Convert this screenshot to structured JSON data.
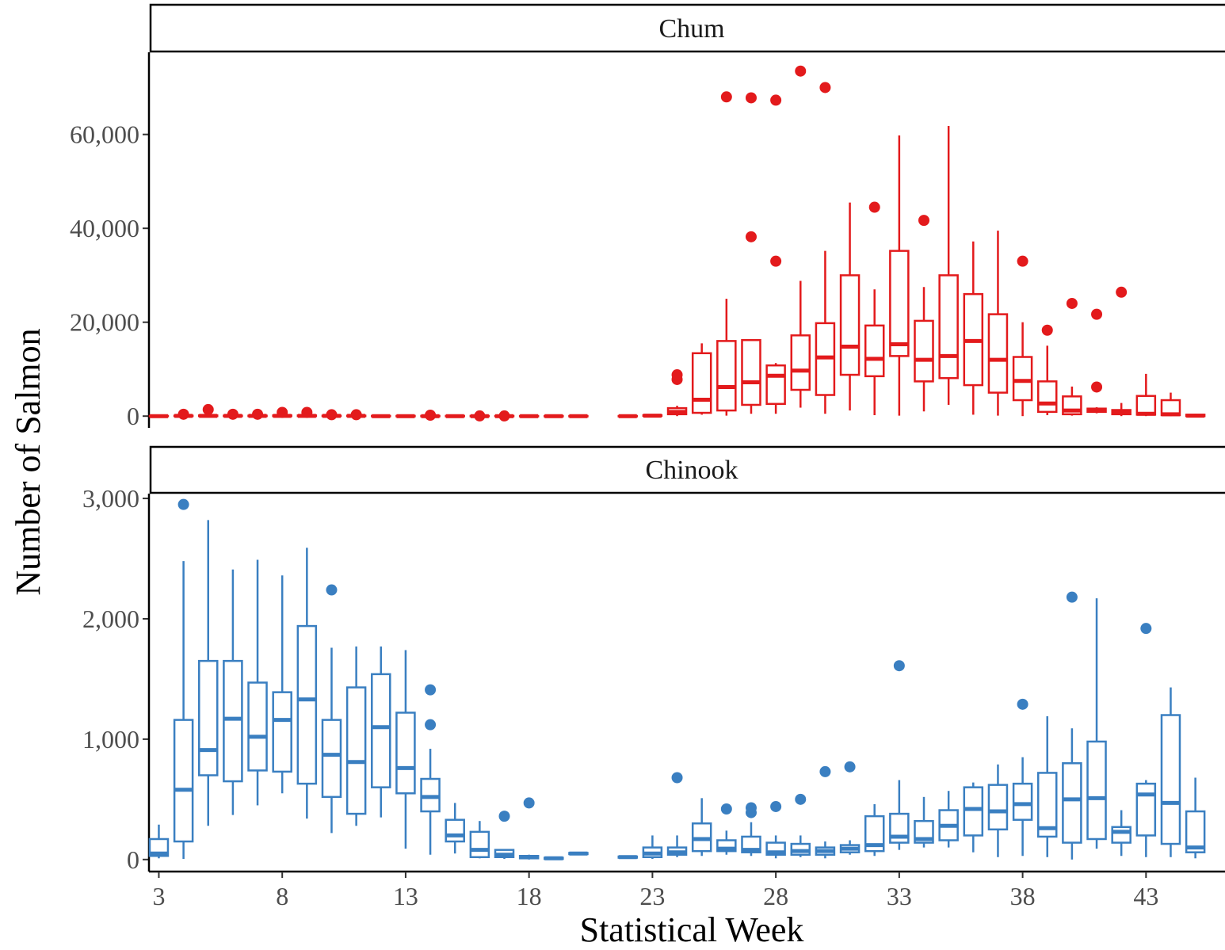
{
  "chart_data": {
    "type": "boxplot",
    "xlabel": "Statistical Week",
    "ylabel": "Number of Salmon",
    "x_ticks": [
      3,
      8,
      13,
      18,
      23,
      28,
      33,
      38,
      43
    ],
    "x_tick_labels": [
      "3",
      "8",
      "13",
      "18",
      "23",
      "28",
      "33",
      "38",
      "43"
    ],
    "xlim": [
      2.6,
      46.2
    ],
    "panels": [
      {
        "name": "Chum",
        "color": "#e31a1c",
        "ylim": [
          -2500,
          77500
        ],
        "y_ticks": [
          0,
          20000,
          40000,
          60000
        ],
        "y_tick_labels": [
          "0",
          "20,000",
          "40,000",
          "60,000"
        ],
        "boxes": [
          {
            "week": 3,
            "min": 0,
            "q1": 0,
            "median": 0,
            "q3": 50,
            "max": 80
          },
          {
            "week": 4,
            "min": 0,
            "q1": 0,
            "median": 50,
            "q3": 100,
            "max": 150,
            "outliers": [
              400
            ]
          },
          {
            "week": 5,
            "min": 0,
            "q1": 0,
            "median": 50,
            "q3": 150,
            "max": 200,
            "outliers": [
              1400
            ]
          },
          {
            "week": 6,
            "min": 0,
            "q1": 0,
            "median": 50,
            "q3": 100,
            "max": 150,
            "outliers": [
              400
            ]
          },
          {
            "week": 7,
            "min": 0,
            "q1": 0,
            "median": 50,
            "q3": 100,
            "max": 150,
            "outliers": [
              400
            ]
          },
          {
            "week": 8,
            "min": 0,
            "q1": 0,
            "median": 50,
            "q3": 150,
            "max": 200,
            "outliers": [
              800
            ]
          },
          {
            "week": 9,
            "min": 0,
            "q1": 0,
            "median": 50,
            "q3": 150,
            "max": 200,
            "outliers": [
              800
            ]
          },
          {
            "week": 10,
            "min": 0,
            "q1": 0,
            "median": 50,
            "q3": 100,
            "max": 150,
            "outliers": [
              300
            ]
          },
          {
            "week": 11,
            "min": 0,
            "q1": 0,
            "median": 50,
            "q3": 100,
            "max": 150,
            "outliers": [
              300
            ]
          },
          {
            "week": 12,
            "min": 0,
            "q1": 0,
            "median": 0,
            "q3": 50,
            "max": 80
          },
          {
            "week": 13,
            "min": 0,
            "q1": 0,
            "median": 0,
            "q3": 50,
            "max": 80
          },
          {
            "week": 14,
            "min": 0,
            "q1": 0,
            "median": 0,
            "q3": 50,
            "max": 80,
            "outliers": [
              200
            ]
          },
          {
            "week": 15,
            "min": 0,
            "q1": 0,
            "median": 0,
            "q3": 50,
            "max": 80
          },
          {
            "week": 16,
            "min": 0,
            "q1": 0,
            "median": 0,
            "q3": 50,
            "max": 80,
            "outliers": [
              50
            ]
          },
          {
            "week": 17,
            "min": 0,
            "q1": 0,
            "median": 0,
            "q3": 50,
            "max": 80,
            "outliers": [
              50
            ]
          },
          {
            "week": 18,
            "min": 0,
            "q1": 0,
            "median": 0,
            "q3": 30,
            "max": 50
          },
          {
            "week": 19,
            "min": 0,
            "q1": 0,
            "median": 0,
            "q3": 30,
            "max": 50
          },
          {
            "week": 20,
            "min": 0,
            "q1": 0,
            "median": 0,
            "q3": 30,
            "max": 50
          },
          {
            "week": 22,
            "min": 0,
            "q1": 0,
            "median": 0,
            "q3": 30,
            "max": 50
          },
          {
            "week": 23,
            "min": 0,
            "q1": 50,
            "median": 100,
            "q3": 200,
            "max": 300
          },
          {
            "week": 24,
            "min": 0,
            "q1": 400,
            "median": 900,
            "q3": 1700,
            "max": 2200,
            "outliers": [
              7800,
              8800
            ]
          },
          {
            "week": 25,
            "min": 300,
            "q1": 700,
            "median": 3500,
            "q3": 13400,
            "max": 15500
          },
          {
            "week": 26,
            "min": 100,
            "q1": 1200,
            "median": 6200,
            "q3": 16000,
            "max": 25000,
            "outliers": [
              68000
            ]
          },
          {
            "week": 27,
            "min": 500,
            "q1": 2400,
            "median": 7200,
            "q3": 16200,
            "max": 16200,
            "outliers": [
              38200,
              67800
            ]
          },
          {
            "week": 28,
            "min": 500,
            "q1": 2600,
            "median": 8600,
            "q3": 10800,
            "max": 11300,
            "outliers": [
              33000,
              67300
            ]
          },
          {
            "week": 29,
            "min": 1800,
            "q1": 5600,
            "median": 9700,
            "q3": 17200,
            "max": 28800,
            "outliers": [
              73500
            ]
          },
          {
            "week": 30,
            "min": 500,
            "q1": 4500,
            "median": 12500,
            "q3": 19800,
            "max": 35200,
            "outliers": [
              70000
            ]
          },
          {
            "week": 31,
            "min": 1200,
            "q1": 8800,
            "median": 14800,
            "q3": 30000,
            "max": 45500
          },
          {
            "week": 32,
            "min": 200,
            "q1": 8500,
            "median": 12200,
            "q3": 19300,
            "max": 27000,
            "outliers": [
              44500
            ]
          },
          {
            "week": 33,
            "min": 100,
            "q1": 12800,
            "median": 15300,
            "q3": 35200,
            "max": 59800
          },
          {
            "week": 34,
            "min": 1000,
            "q1": 7400,
            "median": 12000,
            "q3": 20300,
            "max": 27500,
            "outliers": [
              41700
            ]
          },
          {
            "week": 35,
            "min": 2400,
            "q1": 8100,
            "median": 12800,
            "q3": 30000,
            "max": 61800
          },
          {
            "week": 36,
            "min": 300,
            "q1": 6600,
            "median": 16000,
            "q3": 26000,
            "max": 37200
          },
          {
            "week": 37,
            "min": 100,
            "q1": 5000,
            "median": 12000,
            "q3": 21700,
            "max": 39500
          },
          {
            "week": 38,
            "min": 0,
            "q1": 3400,
            "median": 7500,
            "q3": 12600,
            "max": 20000,
            "outliers": [
              33000
            ]
          },
          {
            "week": 39,
            "min": 200,
            "q1": 900,
            "median": 2700,
            "q3": 7400,
            "max": 15000,
            "outliers": [
              18300
            ]
          },
          {
            "week": 40,
            "min": 100,
            "q1": 400,
            "median": 1200,
            "q3": 4200,
            "max": 6300,
            "outliers": [
              24000
            ]
          },
          {
            "week": 41,
            "min": 600,
            "q1": 900,
            "median": 1300,
            "q3": 1600,
            "max": 1900,
            "outliers": [
              6200,
              21700
            ]
          },
          {
            "week": 42,
            "min": 0,
            "q1": 400,
            "median": 800,
            "q3": 1300,
            "max": 2800,
            "outliers": [
              26400
            ]
          },
          {
            "week": 43,
            "min": 0,
            "q1": 300,
            "median": 500,
            "q3": 4300,
            "max": 9000
          },
          {
            "week": 44,
            "min": 0,
            "q1": 200,
            "median": 400,
            "q3": 3400,
            "max": 5000
          },
          {
            "week": 45,
            "min": 0,
            "q1": 0,
            "median": 100,
            "q3": 300,
            "max": 500
          }
        ]
      },
      {
        "name": "Chinook",
        "color": "#3a7fc1",
        "ylim": [
          -100,
          3040
        ],
        "y_ticks": [
          0,
          1000,
          2000,
          3000
        ],
        "y_tick_labels": [
          "0",
          "1,000",
          "2,000",
          "3,000"
        ],
        "boxes": [
          {
            "week": 3,
            "min": 10,
            "q1": 30,
            "median": 50,
            "q3": 170,
            "max": 290
          },
          {
            "week": 4,
            "min": 5,
            "q1": 150,
            "median": 580,
            "q3": 1160,
            "max": 2480,
            "outliers": [
              2950
            ]
          },
          {
            "week": 5,
            "min": 280,
            "q1": 700,
            "median": 910,
            "q3": 1650,
            "max": 2820
          },
          {
            "week": 6,
            "min": 370,
            "q1": 650,
            "median": 1170,
            "q3": 1650,
            "max": 2410
          },
          {
            "week": 7,
            "min": 450,
            "q1": 740,
            "median": 1020,
            "q3": 1470,
            "max": 2490
          },
          {
            "week": 8,
            "min": 550,
            "q1": 730,
            "median": 1160,
            "q3": 1390,
            "max": 2360
          },
          {
            "week": 9,
            "min": 340,
            "q1": 630,
            "median": 1330,
            "q3": 1940,
            "max": 2590
          },
          {
            "week": 10,
            "min": 220,
            "q1": 520,
            "median": 870,
            "q3": 1160,
            "max": 1760,
            "outliers": [
              2240
            ]
          },
          {
            "week": 11,
            "min": 280,
            "q1": 380,
            "median": 810,
            "q3": 1430,
            "max": 1770
          },
          {
            "week": 12,
            "min": 350,
            "q1": 600,
            "median": 1100,
            "q3": 1540,
            "max": 1770
          },
          {
            "week": 13,
            "min": 90,
            "q1": 550,
            "median": 760,
            "q3": 1220,
            "max": 1740
          },
          {
            "week": 14,
            "min": 40,
            "q1": 400,
            "median": 520,
            "q3": 670,
            "max": 920,
            "outliers": [
              1120,
              1410
            ]
          },
          {
            "week": 15,
            "min": 50,
            "q1": 150,
            "median": 200,
            "q3": 330,
            "max": 470
          },
          {
            "week": 16,
            "min": 10,
            "q1": 20,
            "median": 80,
            "q3": 230,
            "max": 320
          },
          {
            "week": 17,
            "min": 5,
            "q1": 20,
            "median": 40,
            "q3": 80,
            "max": 80,
            "outliers": [
              360
            ]
          },
          {
            "week": 18,
            "min": 0,
            "q1": 10,
            "median": 20,
            "q3": 30,
            "max": 40,
            "outliers": [
              470
            ]
          },
          {
            "week": 19,
            "min": 0,
            "q1": 5,
            "median": 10,
            "q3": 15,
            "max": 20
          },
          {
            "week": 20,
            "min": 40,
            "q1": 45,
            "median": 50,
            "q3": 55,
            "max": 60
          },
          {
            "week": 22,
            "min": 10,
            "q1": 15,
            "median": 20,
            "q3": 25,
            "max": 30
          },
          {
            "week": 23,
            "min": 5,
            "q1": 20,
            "median": 50,
            "q3": 100,
            "max": 200
          },
          {
            "week": 24,
            "min": 20,
            "q1": 40,
            "median": 60,
            "q3": 100,
            "max": 200,
            "outliers": [
              680
            ]
          },
          {
            "week": 25,
            "min": 30,
            "q1": 70,
            "median": 170,
            "q3": 300,
            "max": 510
          },
          {
            "week": 26,
            "min": 40,
            "q1": 70,
            "median": 90,
            "q3": 160,
            "max": 240,
            "outliers": [
              420
            ]
          },
          {
            "week": 27,
            "min": 30,
            "q1": 60,
            "median": 80,
            "q3": 190,
            "max": 310,
            "outliers": [
              390,
              430
            ]
          },
          {
            "week": 28,
            "min": 10,
            "q1": 40,
            "median": 60,
            "q3": 140,
            "max": 200,
            "outliers": [
              440
            ]
          },
          {
            "week": 29,
            "min": 20,
            "q1": 40,
            "median": 70,
            "q3": 130,
            "max": 200,
            "outliers": [
              500
            ]
          },
          {
            "week": 30,
            "min": 10,
            "q1": 40,
            "median": 70,
            "q3": 100,
            "max": 150,
            "outliers": [
              730
            ]
          },
          {
            "week": 31,
            "min": 40,
            "q1": 60,
            "median": 90,
            "q3": 120,
            "max": 160,
            "outliers": [
              770
            ]
          },
          {
            "week": 32,
            "min": 30,
            "q1": 70,
            "median": 120,
            "q3": 360,
            "max": 460
          },
          {
            "week": 33,
            "min": 80,
            "q1": 140,
            "median": 190,
            "q3": 380,
            "max": 660,
            "outliers": [
              1610
            ]
          },
          {
            "week": 34,
            "min": 100,
            "q1": 140,
            "median": 170,
            "q3": 320,
            "max": 520
          },
          {
            "week": 35,
            "min": 100,
            "q1": 160,
            "median": 280,
            "q3": 410,
            "max": 570
          },
          {
            "week": 36,
            "min": 60,
            "q1": 200,
            "median": 420,
            "q3": 600,
            "max": 640
          },
          {
            "week": 37,
            "min": 20,
            "q1": 250,
            "median": 400,
            "q3": 620,
            "max": 790
          },
          {
            "week": 38,
            "min": 30,
            "q1": 330,
            "median": 460,
            "q3": 630,
            "max": 850,
            "outliers": [
              1290
            ]
          },
          {
            "week": 39,
            "min": 20,
            "q1": 190,
            "median": 260,
            "q3": 720,
            "max": 1190
          },
          {
            "week": 40,
            "min": 0,
            "q1": 140,
            "median": 500,
            "q3": 800,
            "max": 1090,
            "outliers": [
              2180
            ]
          },
          {
            "week": 41,
            "min": 90,
            "q1": 170,
            "median": 510,
            "q3": 980,
            "max": 2170
          },
          {
            "week": 42,
            "min": 30,
            "q1": 140,
            "median": 230,
            "q3": 270,
            "max": 410
          },
          {
            "week": 43,
            "min": 20,
            "q1": 200,
            "median": 540,
            "q3": 630,
            "max": 660,
            "outliers": [
              1920
            ]
          },
          {
            "week": 44,
            "min": 20,
            "q1": 130,
            "median": 470,
            "q3": 1200,
            "max": 1430
          },
          {
            "week": 45,
            "min": 10,
            "q1": 60,
            "median": 100,
            "q3": 400,
            "max": 680
          }
        ]
      }
    ]
  }
}
